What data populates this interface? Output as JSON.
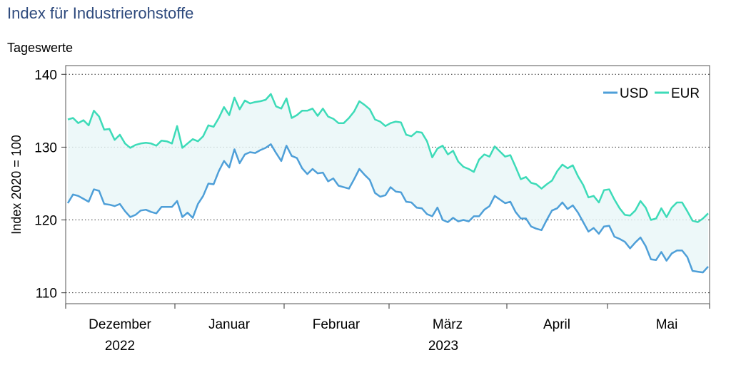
{
  "chart_data": {
    "type": "line",
    "title": "Index für Industrierohstoffe",
    "subtitle": "Tageswerte",
    "ylabel": "Index 2020 = 100",
    "xlabel": "",
    "ylim": [
      108.5,
      141.2
    ],
    "yticks": [
      110,
      120,
      130,
      140
    ],
    "grid": true,
    "legend_position": "top-right",
    "x_month_labels": [
      "Dezember",
      "Januar",
      "Februar",
      "März",
      "April",
      "Mai"
    ],
    "x_year_labels": [
      "2022",
      "2023"
    ],
    "series": [
      {
        "name": "USD",
        "color": "#4e9fd8",
        "values": [
          122.3,
          123.5,
          123.3,
          122.9,
          122.5,
          124.2,
          124.0,
          122.2,
          122.1,
          121.9,
          122.2,
          121.2,
          120.4,
          120.7,
          121.3,
          121.4,
          121.1,
          120.9,
          121.8,
          121.8,
          121.8,
          122.6,
          120.4,
          121.0,
          120.3,
          122.2,
          123.3,
          125.0,
          124.9,
          126.7,
          128.1,
          127.2,
          129.7,
          127.8,
          129.0,
          129.3,
          129.2,
          129.6,
          129.9,
          130.4,
          129.2,
          128.1,
          130.2,
          128.8,
          128.5,
          127.1,
          126.3,
          127.0,
          126.4,
          126.5,
          125.3,
          125.7,
          124.7,
          124.5,
          124.3,
          125.6,
          127.0,
          126.2,
          125.5,
          123.7,
          123.2,
          123.4,
          124.5,
          123.9,
          123.8,
          122.5,
          122.4,
          121.7,
          121.6,
          120.8,
          120.5,
          121.7,
          120.0,
          119.7,
          120.3,
          119.8,
          120.0,
          119.8,
          120.5,
          120.5,
          121.4,
          121.9,
          123.3,
          122.8,
          122.3,
          122.5,
          121.1,
          120.2,
          120.2,
          119.1,
          118.8,
          118.6,
          120.0,
          121.3,
          121.6,
          122.4,
          121.5,
          122.0,
          121.0,
          119.7,
          118.4,
          118.9,
          118.1,
          119.1,
          119.2,
          117.7,
          117.4,
          117.0,
          116.1,
          116.9,
          117.6,
          116.4,
          114.6,
          114.5,
          115.6,
          114.4,
          115.4,
          115.8,
          115.8,
          114.9,
          113.0,
          112.9,
          112.8,
          113.6
        ]
      },
      {
        "name": "EUR",
        "color": "#3ddbb8",
        "values": [
          133.8,
          134.0,
          133.3,
          133.7,
          133.0,
          135.0,
          134.2,
          132.4,
          132.5,
          131.0,
          131.7,
          130.5,
          129.9,
          130.3,
          130.5,
          130.6,
          130.5,
          130.2,
          130.9,
          130.8,
          130.5,
          132.9,
          129.9,
          130.5,
          131.1,
          130.8,
          131.5,
          133.0,
          132.8,
          134.0,
          135.5,
          134.4,
          136.8,
          135.2,
          136.4,
          136.0,
          136.2,
          136.3,
          136.5,
          137.3,
          135.6,
          135.3,
          136.7,
          134.0,
          134.4,
          135.0,
          135.0,
          135.3,
          134.3,
          135.3,
          134.2,
          133.9,
          133.3,
          133.3,
          134.0,
          134.9,
          136.3,
          135.8,
          135.2,
          133.8,
          133.5,
          132.9,
          133.3,
          133.5,
          133.4,
          131.7,
          131.5,
          132.1,
          132.0,
          130.8,
          128.6,
          129.8,
          130.2,
          129.0,
          129.5,
          128.0,
          127.3,
          127.0,
          126.6,
          128.3,
          129.0,
          128.7,
          130.1,
          129.4,
          128.7,
          128.9,
          127.3,
          125.6,
          125.9,
          125.1,
          124.9,
          124.3,
          124.9,
          125.4,
          126.7,
          127.6,
          127.1,
          127.5,
          126.0,
          124.8,
          123.1,
          123.3,
          122.4,
          124.1,
          124.2,
          122.8,
          121.6,
          120.7,
          120.6,
          121.3,
          122.6,
          121.7,
          120.0,
          120.2,
          121.6,
          120.4,
          121.7,
          122.4,
          122.4,
          121.2,
          119.9,
          119.7,
          120.2,
          120.9
        ]
      }
    ]
  }
}
